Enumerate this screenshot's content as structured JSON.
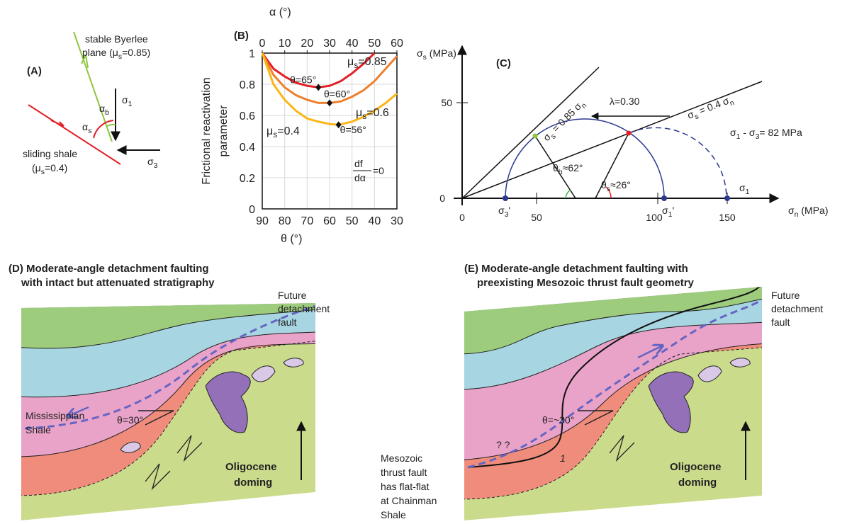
{
  "panel_a": {
    "label": "(A)",
    "plane_line1": "stable Byerlee",
    "plane_line2": [
      "plane (μ",
      "s",
      "=0.85)"
    ],
    "shale_line1": "sliding shale",
    "shale_line2": [
      "(μ",
      "s",
      "=0.4)"
    ],
    "sigma1": [
      "σ",
      "1"
    ],
    "sigma3": [
      "σ",
      "3"
    ],
    "alpha_b": [
      "α",
      "b"
    ],
    "alpha_s": [
      "α",
      "s"
    ]
  },
  "chart_data": {
    "type": "line",
    "label": "(B)",
    "x_label": "θ (°)",
    "x2_label": "α (°)",
    "y_label_lines": [
      "Frictional reactivation",
      "parameter"
    ],
    "xlim": [
      90,
      30
    ],
    "xticks": [
      90,
      80,
      70,
      60,
      50,
      40,
      30
    ],
    "x2lim": [
      0,
      60
    ],
    "x2ticks": [
      0,
      10,
      20,
      30,
      40,
      50,
      60
    ],
    "ylim": [
      0,
      1
    ],
    "yticks": [
      0,
      0.2,
      0.4,
      0.6,
      0.8,
      1
    ],
    "grid": true,
    "series": [
      {
        "name": [
          "μ",
          "s",
          "=0.85"
        ],
        "color": "#e31e24",
        "x": [
          90,
          85,
          80,
          75,
          70,
          65,
          60,
          55,
          50,
          45,
          40
        ],
        "values": [
          1,
          0.9,
          0.85,
          0.81,
          0.79,
          0.78,
          0.79,
          0.82,
          0.87,
          0.93,
          1
        ]
      },
      {
        "name": [
          "μ",
          "s",
          "=0.6"
        ],
        "color": "#ef7f2d",
        "x": [
          90,
          85,
          80,
          75,
          70,
          65,
          60,
          55,
          50,
          45,
          40,
          35,
          30
        ],
        "values": [
          1,
          0.86,
          0.78,
          0.73,
          0.7,
          0.68,
          0.68,
          0.69,
          0.72,
          0.76,
          0.82,
          0.9,
          0.98
        ]
      },
      {
        "name": [
          "μ",
          "s",
          "=0.4"
        ],
        "color": "#fbb616",
        "x": [
          90,
          85,
          80,
          75,
          70,
          65,
          60,
          56,
          50,
          45,
          40,
          35,
          30
        ],
        "values": [
          1,
          0.8,
          0.7,
          0.63,
          0.58,
          0.56,
          0.545,
          0.54,
          0.56,
          0.59,
          0.63,
          0.68,
          0.74
        ]
      }
    ],
    "points": [
      {
        "x": 65,
        "y": 0.78,
        "label": "θ=65°"
      },
      {
        "x": 60,
        "y": 0.68,
        "label": "θ=60°"
      },
      {
        "x": 56,
        "y": 0.54,
        "label": "θ=56°"
      }
    ],
    "annotation": {
      "numerator": "df",
      "denominator": "dα",
      "rhs": "=0"
    }
  },
  "panel_c": {
    "label": "(C)",
    "y_label": [
      "σ",
      "s",
      " (MPa)"
    ],
    "x_label": [
      "σ",
      "n",
      " (MPa)"
    ],
    "x_ticks": [
      "0",
      "50",
      "100",
      "150"
    ],
    "y_ticks": [
      "0",
      "50"
    ],
    "line_085": [
      "σ",
      "s",
      " = 0.85 σ",
      "n"
    ],
    "line_04": [
      "σ",
      "s",
      " = 0.4 σ",
      "n"
    ],
    "lambda": "λ=0.30",
    "diff_stress": [
      "σ",
      "1",
      " - σ",
      "3",
      "= 82 MPa"
    ],
    "sigma1": [
      "σ",
      "1"
    ],
    "sigma3_eff": [
      "σ",
      "3",
      "'"
    ],
    "sigma1_eff": [
      "σ",
      "1",
      "'"
    ],
    "theta_b": [
      "θ",
      "b",
      "≈62°"
    ],
    "theta_s": [
      "θ",
      "s",
      "≈26°"
    ]
  },
  "panel_d": {
    "title_lines": [
      "(D) Moderate-angle detachment faulting",
      "with intact but attenuated stratigraphy"
    ],
    "future_lines": [
      "Future",
      "detachment",
      "fault"
    ],
    "shale_lines": [
      "Mississippian",
      "Shale"
    ],
    "angle": "θ=30°",
    "doming_lines": [
      "Oligocene",
      "doming"
    ]
  },
  "panel_e": {
    "title_lines": [
      "(E) Moderate-angle detachment faulting with",
      "preexisting Mesozoic thrust fault geometry"
    ],
    "future_lines": [
      "Future",
      "detachment",
      "fault"
    ],
    "angle": "θ=~30°",
    "question": "? ?",
    "thrust_number": "1",
    "mesozoic_lines": [
      "Mesozoic",
      "thrust fault",
      "has flat-flat",
      "at Chainman",
      "Shale"
    ],
    "doming_lines": [
      "Oligocene",
      "doming"
    ]
  }
}
